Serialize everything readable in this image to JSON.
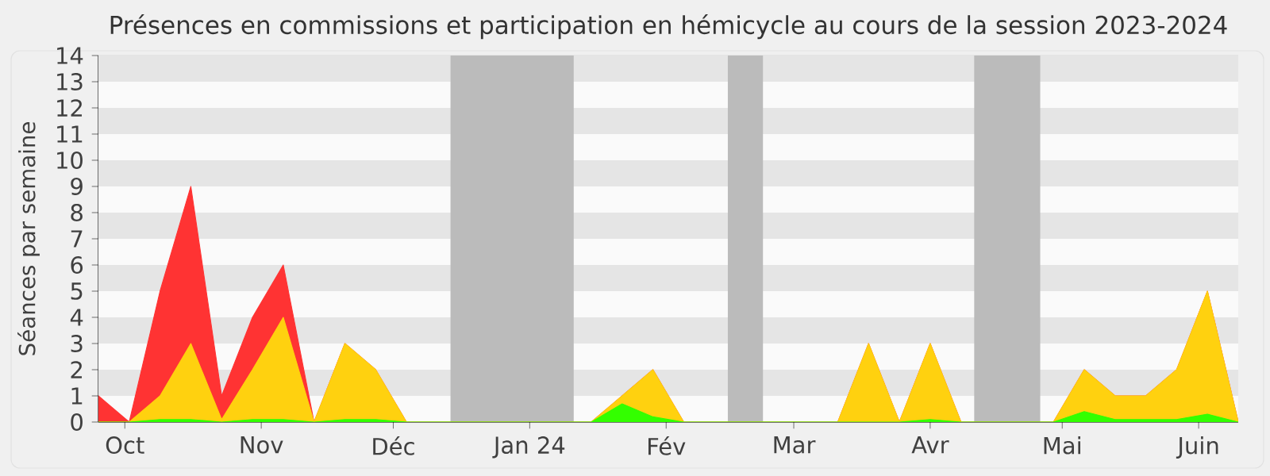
{
  "chart_data": {
    "type": "area",
    "title": "Présences en commissions et participation en hémicycle au cours de la session 2023-2024",
    "ylabel": "Séances par semaine",
    "x": [
      "2023-09-25",
      "2023-10-02",
      "2023-10-09",
      "2023-10-16",
      "2023-10-23",
      "2023-10-30",
      "2023-11-06",
      "2023-11-13",
      "2023-11-20",
      "2023-11-27",
      "2023-12-04",
      "2023-12-11",
      "2023-12-18",
      "2023-12-25",
      "2024-01-01",
      "2024-01-08",
      "2024-01-15",
      "2024-01-22",
      "2024-01-29",
      "2024-02-05",
      "2024-02-12",
      "2024-02-19",
      "2024-02-26",
      "2024-03-04",
      "2024-03-11",
      "2024-03-18",
      "2024-03-25",
      "2024-04-01",
      "2024-04-08",
      "2024-04-15",
      "2024-04-22",
      "2024-04-29",
      "2024-05-06",
      "2024-05-13",
      "2024-05-20",
      "2024-05-27",
      "2024-06-03",
      "2024-06-10"
    ],
    "series": [
      {
        "color": "#ff3333",
        "values": [
          1,
          0,
          5,
          9,
          1,
          4,
          6,
          0,
          3,
          2,
          0,
          0,
          0,
          0,
          0,
          0,
          0,
          1,
          2,
          0,
          0,
          0,
          0,
          0,
          0,
          3,
          0,
          3,
          0,
          0,
          0,
          0,
          2,
          1,
          1,
          2,
          5,
          0
        ]
      },
      {
        "color": "#ffd10f",
        "values": [
          0,
          0,
          1,
          3,
          0.1,
          2,
          4,
          0,
          3,
          2,
          0,
          0,
          0,
          0,
          0,
          0,
          0,
          1,
          2,
          0,
          0,
          0,
          0,
          0,
          0,
          3,
          0,
          3,
          0,
          0,
          0,
          0,
          2,
          1,
          1,
          2,
          5,
          0
        ]
      },
      {
        "color": "#33ff00",
        "values": [
          0,
          0,
          0.1,
          0.1,
          0,
          0.1,
          0.1,
          0,
          0.1,
          0.1,
          0,
          0,
          0,
          0,
          0,
          0,
          0,
          0.7,
          0.2,
          0,
          0,
          0,
          0,
          0,
          0,
          0,
          0,
          0.1,
          0,
          0,
          0,
          0,
          0.4,
          0.1,
          0.1,
          0.1,
          0.3,
          0
        ]
      }
    ],
    "xlim": [
      "2023-09-25",
      "2024-06-10"
    ],
    "ylim": [
      0,
      14
    ],
    "xticks": [
      {
        "value": "2023-10-01",
        "label": "Oct"
      },
      {
        "value": "2023-11-01",
        "label": "Nov"
      },
      {
        "value": "2023-12-01",
        "label": "Déc"
      },
      {
        "value": "2024-01-01",
        "label": "Jan 24"
      },
      {
        "value": "2024-02-01",
        "label": "Fév"
      },
      {
        "value": "2024-03-01",
        "label": "Mar"
      },
      {
        "value": "2024-04-01",
        "label": "Avr"
      },
      {
        "value": "2024-05-01",
        "label": "Mai"
      },
      {
        "value": "2024-06-01",
        "label": "Juin"
      }
    ],
    "yticks": [
      0,
      1,
      2,
      3,
      4,
      5,
      6,
      7,
      8,
      9,
      10,
      11,
      12,
      13,
      14
    ],
    "bands": [
      {
        "axis": "x",
        "from": "2023-12-14",
        "to": "2024-01-11",
        "color": "#bbbbbb"
      },
      {
        "axis": "x",
        "from": "2024-02-15",
        "to": "2024-02-23",
        "color": "#bbbbbb"
      },
      {
        "axis": "x",
        "from": "2024-04-11",
        "to": "2024-04-26",
        "color": "#bbbbbb"
      }
    ],
    "grid": "y",
    "marker": "none"
  }
}
